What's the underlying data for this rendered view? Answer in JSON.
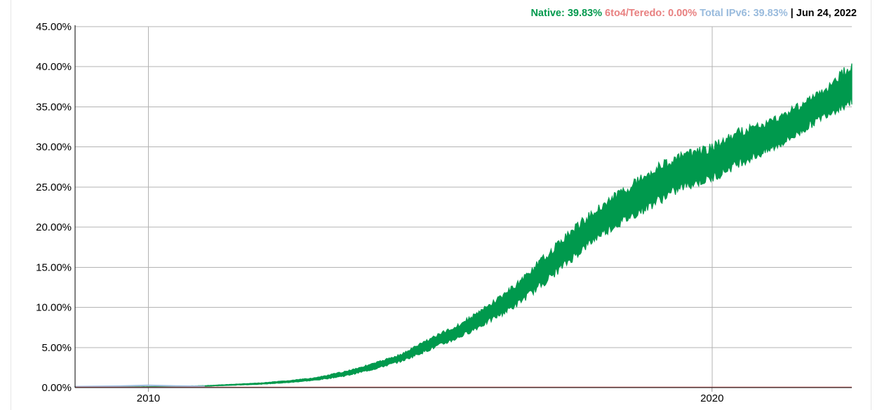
{
  "legend": {
    "native_label": "Native: 39.83%",
    "teredo_label": "6to4/Teredo: 0.00%",
    "total_label": "Total IPv6: 39.83%",
    "separator": "|",
    "date": "Jun 24, 2022"
  },
  "colors": {
    "native": "#00994d",
    "teredo": "#e88080",
    "total": "#99bbdd",
    "grid": "#b3b3b3"
  },
  "chart_data": {
    "type": "area",
    "title": "",
    "xlabel": "",
    "ylabel": "",
    "grid": true,
    "legend_position": "top-right",
    "xlim": [
      2008.7,
      2022.48
    ],
    "ylim": [
      0,
      45
    ],
    "x_ticks": [
      {
        "value": 2010,
        "label": "2010"
      },
      {
        "value": 2020,
        "label": "2020"
      }
    ],
    "y_ticks": [
      {
        "value": 0,
        "label": "0.00%"
      },
      {
        "value": 5,
        "label": "5.00%"
      },
      {
        "value": 10,
        "label": "10.00%"
      },
      {
        "value": 15,
        "label": "15.00%"
      },
      {
        "value": 20,
        "label": "20.00%"
      },
      {
        "value": 25,
        "label": "25.00%"
      },
      {
        "value": 30,
        "label": "30.00%"
      },
      {
        "value": 35,
        "label": "35.00%"
      },
      {
        "value": 40,
        "label": "40.00%"
      },
      {
        "value": 45,
        "label": "45.00%"
      }
    ],
    "series": [
      {
        "name": "Native",
        "x": [
          2008.7,
          2010.0,
          2011.0,
          2012.0,
          2012.5,
          2013.0,
          2013.5,
          2014.0,
          2014.5,
          2015.0,
          2015.5,
          2016.0,
          2016.5,
          2017.0,
          2017.5,
          2018.0,
          2018.5,
          2019.0,
          2019.5,
          2020.0,
          2020.5,
          2021.0,
          2021.5,
          2022.0,
          2022.48
        ],
        "low": [
          0.05,
          0.08,
          0.15,
          0.4,
          0.6,
          0.9,
          1.4,
          2.2,
          3.2,
          4.6,
          6.0,
          7.8,
          9.8,
          12.5,
          15.5,
          18.5,
          20.5,
          22.5,
          24.5,
          25.5,
          27.5,
          29.0,
          31.0,
          33.5,
          35.0
        ],
        "high": [
          0.1,
          0.12,
          0.25,
          0.6,
          0.9,
          1.3,
          2.1,
          3.1,
          4.3,
          6.3,
          8.0,
          10.3,
          13.0,
          16.5,
          20.0,
          23.0,
          25.5,
          28.0,
          29.5,
          30.5,
          32.5,
          33.5,
          35.5,
          37.5,
          41.0
        ]
      },
      {
        "name": "6to4/Teredo",
        "x": [
          2008.7,
          2022.48
        ],
        "values": [
          0.02,
          0.02
        ]
      },
      {
        "name": "Total IPv6",
        "x": [
          2008.7,
          2009.5,
          2010.0,
          2010.5,
          2011.0
        ],
        "values": [
          0.12,
          0.18,
          0.28,
          0.2,
          0.15
        ]
      }
    ]
  }
}
